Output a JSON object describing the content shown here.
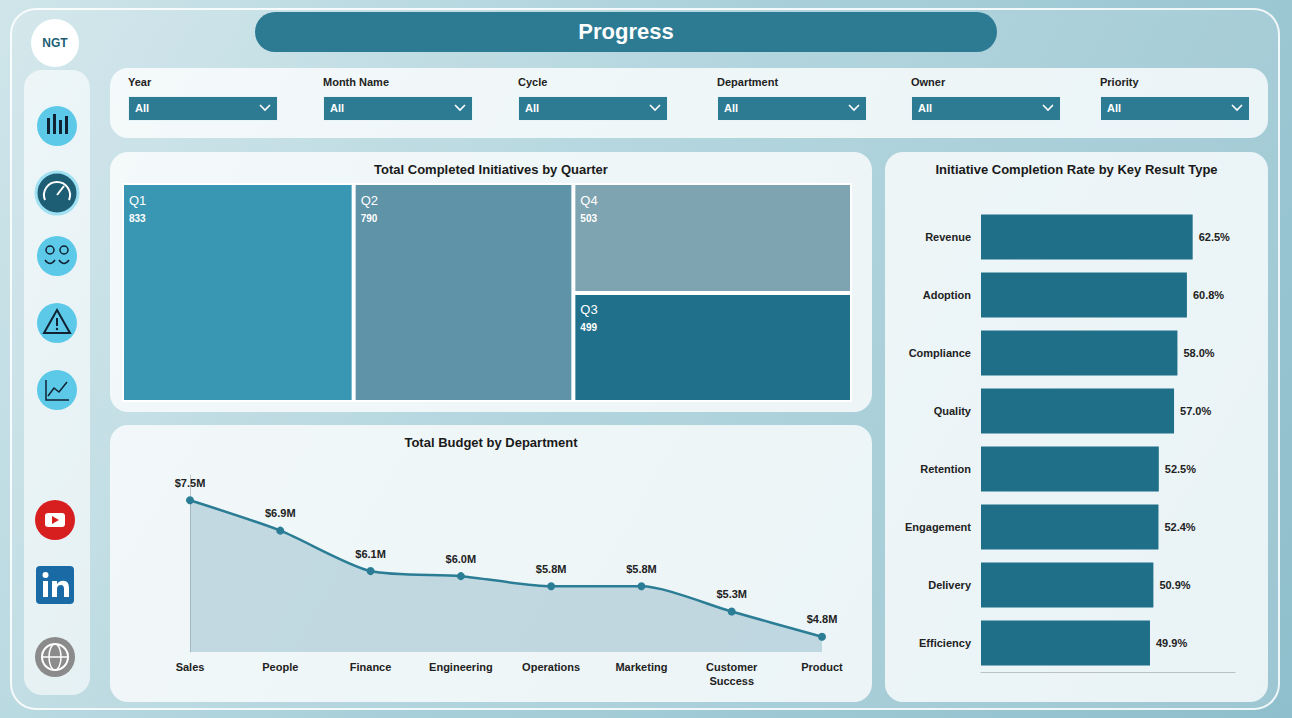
{
  "title": "Progress",
  "logo": "NGT",
  "filters": [
    {
      "label": "Year",
      "value": "All"
    },
    {
      "label": "Month Name",
      "value": "All"
    },
    {
      "label": "Cycle",
      "value": "All"
    },
    {
      "label": "Department",
      "value": "All"
    },
    {
      "label": "Owner",
      "value": "All"
    },
    {
      "label": "Priority",
      "value": "All"
    }
  ],
  "chart_data": [
    {
      "type": "treemap",
      "title": "Total Completed Initiatives by Quarter",
      "categories": [
        "Q1",
        "Q2",
        "Q4",
        "Q3"
      ],
      "values": [
        833,
        790,
        503,
        499
      ],
      "colors": [
        "#3a97b3",
        "#5e93a8",
        "#7fa4b1",
        "#21708b"
      ],
      "data_labels": true
    },
    {
      "type": "line",
      "title": "Total Budget by Department",
      "categories": [
        "Sales",
        "People",
        "Finance",
        "Engineering",
        "Operations",
        "Marketing",
        "Customer Success",
        "Product"
      ],
      "values": [
        7500000,
        6900000,
        6100000,
        6000000,
        5800000,
        5800000,
        5300000,
        4800000
      ],
      "value_labels": [
        "$7.5M",
        "$6.9M",
        "$6.1M",
        "$6.0M",
        "$5.8M",
        "$5.8M",
        "$5.3M",
        "$4.8M"
      ],
      "color": "#2a7d95",
      "ylim": [
        4500000,
        8000000
      ],
      "tick_labels": "x",
      "data_labels": true,
      "grid": false
    },
    {
      "type": "bar",
      "orientation": "horizontal",
      "title": "Initiative Completion Rate by Key Result Type",
      "categories": [
        "Revenue",
        "Adoption",
        "Compliance",
        "Quality",
        "Retention",
        "Engagement",
        "Delivery",
        "Efficiency"
      ],
      "values": [
        62.5,
        60.8,
        58.0,
        57.0,
        52.5,
        52.4,
        50.9,
        49.9
      ],
      "value_labels": [
        "62.5%",
        "60.8%",
        "58.0%",
        "57.0%",
        "52.5%",
        "52.4%",
        "50.9%",
        "49.9%"
      ],
      "color": "#1f6f89",
      "xlim": [
        0,
        75
      ],
      "tick_labels": "y",
      "data_labels": true,
      "grid": false
    }
  ]
}
